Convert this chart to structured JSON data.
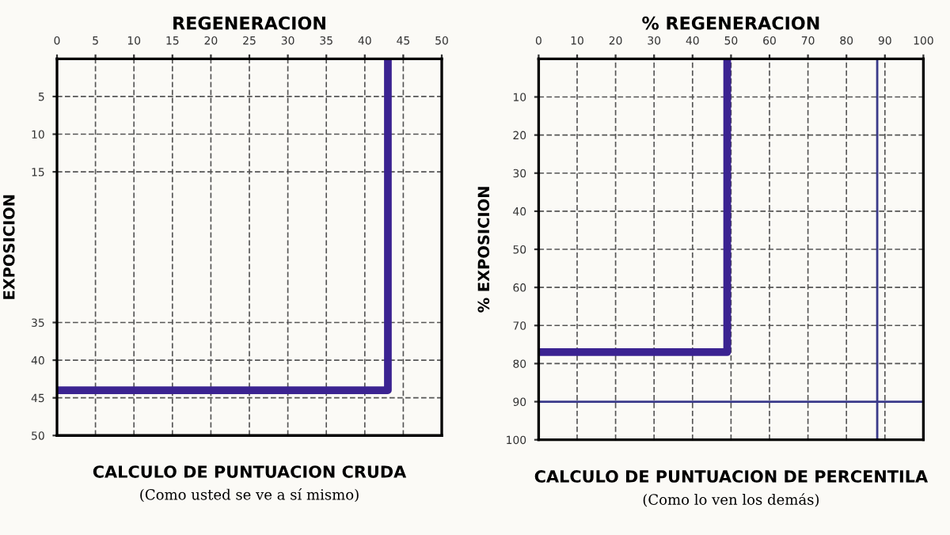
{
  "chart_data": [
    {
      "type": "line",
      "xlabel": "REGENERACION",
      "ylabel": "EXPOSICION",
      "title": "CALCULO DE PUNTUACION CRUDA",
      "subtitle": "(Como usted se ve a sí mismo)",
      "xlim": [
        0,
        50
      ],
      "ylim": [
        50,
        0
      ],
      "xticks": [
        0,
        5,
        10,
        15,
        20,
        25,
        30,
        35,
        40,
        45,
        50
      ],
      "yticks": [
        5,
        10,
        15,
        35,
        40,
        45,
        50
      ],
      "grid": true,
      "marker": "none",
      "line_style": "solid",
      "series": [
        {
          "color": "#3b2391",
          "x": [
            0,
            43,
            43
          ],
          "values": [
            44,
            44,
            0
          ]
        }
      ]
    },
    {
      "type": "line",
      "xlabel": "% REGENERACION",
      "ylabel": "% EXPOSICION",
      "title": "CALCULO DE PUNTUACION DE PERCENTILA",
      "subtitle": "(Como lo ven los demás)",
      "xlim": [
        0,
        100
      ],
      "ylim": [
        100,
        0
      ],
      "xticks": [
        0,
        10,
        20,
        30,
        40,
        50,
        60,
        70,
        80,
        90,
        100
      ],
      "yticks": [
        10,
        20,
        30,
        40,
        50,
        60,
        70,
        80,
        90,
        100
      ],
      "grid": true,
      "marker": "none",
      "line_style": "solid",
      "ref_lines": [
        {
          "axis": "y",
          "value": 90,
          "color": "#3a3a8a"
        },
        {
          "axis": "x",
          "value": 88,
          "color": "#3a3a8a"
        }
      ],
      "series": [
        {
          "color": "#3b2391",
          "x": [
            0,
            49,
            49
          ],
          "values": [
            77,
            77,
            0
          ]
        }
      ]
    }
  ]
}
